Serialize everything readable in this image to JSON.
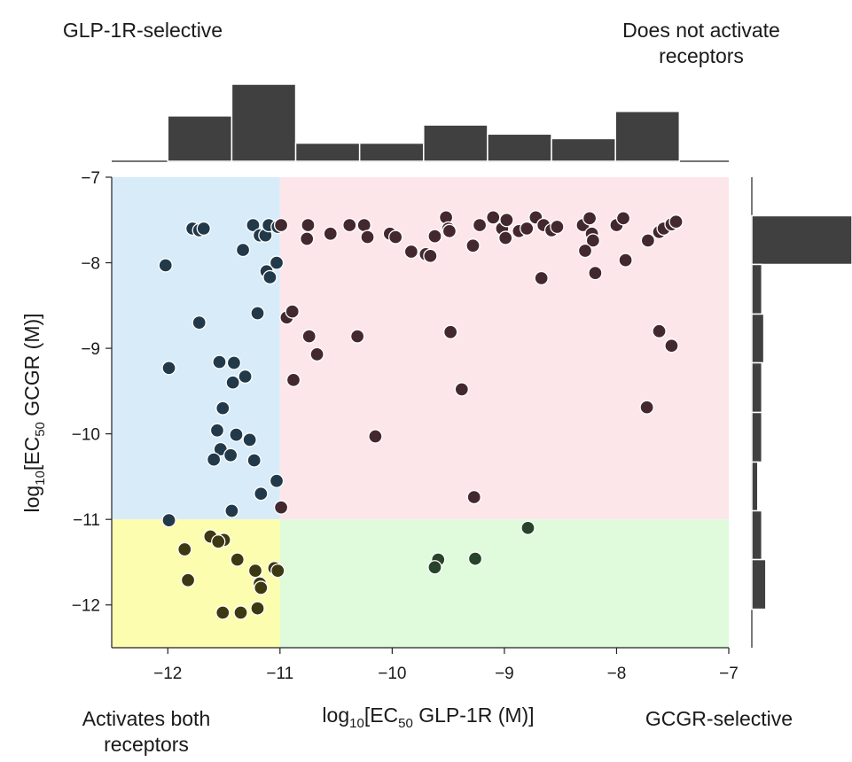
{
  "corner_labels": {
    "top_left": "GLP-1R-selective",
    "top_right": "Does not activate receptors",
    "bottom_left": "Activates both receptors",
    "bottom_right": "GCGR-selective"
  },
  "chart_data": {
    "type": "scatter",
    "xlabel": {
      "prefix": "log",
      "sub": "10",
      "mid": "[EC",
      "sub2": "50",
      "suffix": " GLP-1R (M)]"
    },
    "ylabel": {
      "prefix": "log",
      "sub": "10",
      "mid": "[EC",
      "sub2": "50",
      "suffix": " GCGR (M)]"
    },
    "xlim": [
      -12.5,
      -7
    ],
    "ylim": [
      -12.5,
      -7
    ],
    "x_ticks": [
      -12,
      -11,
      -10,
      -9,
      -8,
      -7
    ],
    "y_ticks": [
      -7,
      -8,
      -9,
      -10,
      -11,
      -12
    ],
    "tick_labels_x": [
      "−12",
      "−11",
      "−10",
      "−9",
      "−8",
      "−7"
    ],
    "tick_labels_y": [
      "−7",
      "−8",
      "−9",
      "−10",
      "−11",
      "−12"
    ],
    "threshold": {
      "x": -11,
      "y": -11
    },
    "regions": [
      {
        "name": "GLP-1R-selective",
        "x": [
          -12.5,
          -11
        ],
        "y": [
          -11,
          -7
        ],
        "color": "#d7ecf8"
      },
      {
        "name": "Does not activate receptors",
        "x": [
          -11,
          -7
        ],
        "y": [
          -11,
          -7
        ],
        "color": "#fde6ea"
      },
      {
        "name": "Activates both receptors",
        "x": [
          -12.5,
          -11
        ],
        "y": [
          -12.5,
          -11
        ],
        "color": "#fdfdb0"
      },
      {
        "name": "GCGR-selective",
        "x": [
          -11,
          -7
        ],
        "y": [
          -12.5,
          -11
        ],
        "color": "#dffbdc"
      }
    ],
    "point_colors": {
      "GLP-1R-selective": "#22394a",
      "Does not activate receptors": "#43292f",
      "Activates both receptors": "#3c3812",
      "GCGR-selective": "#27432a"
    },
    "series": [
      {
        "name": "GLP-1R-selective",
        "points": [
          [
            -11.78,
            -7.6
          ],
          [
            -11.72,
            -7.62
          ],
          [
            -11.68,
            -7.6
          ],
          [
            -11.24,
            -7.56
          ],
          [
            -11.18,
            -7.68
          ],
          [
            -11.13,
            -7.68
          ],
          [
            -11.1,
            -7.56
          ],
          [
            -11.02,
            -7.58
          ],
          [
            -11.33,
            -7.85
          ],
          [
            -12.02,
            -8.03
          ],
          [
            -11.03,
            -8.0
          ],
          [
            -11.12,
            -8.1
          ],
          [
            -11.09,
            -8.17
          ],
          [
            -11.2,
            -8.59
          ],
          [
            -11.72,
            -8.7
          ],
          [
            -11.54,
            -9.16
          ],
          [
            -11.41,
            -9.17
          ],
          [
            -11.99,
            -9.23
          ],
          [
            -11.31,
            -9.33
          ],
          [
            -11.42,
            -9.4
          ],
          [
            -11.51,
            -9.7
          ],
          [
            -11.56,
            -9.96
          ],
          [
            -11.39,
            -10.01
          ],
          [
            -11.27,
            -10.07
          ],
          [
            -11.53,
            -10.18
          ],
          [
            -11.44,
            -10.25
          ],
          [
            -11.59,
            -10.3
          ],
          [
            -11.23,
            -10.31
          ],
          [
            -11.03,
            -10.55
          ],
          [
            -11.17,
            -10.7
          ],
          [
            -11.43,
            -10.9
          ],
          [
            -11.99,
            -11.01
          ]
        ]
      },
      {
        "name": "Does not activate receptors",
        "points": [
          [
            -10.99,
            -7.56
          ],
          [
            -10.75,
            -7.56
          ],
          [
            -10.76,
            -7.72
          ],
          [
            -10.55,
            -7.66
          ],
          [
            -10.38,
            -7.56
          ],
          [
            -10.25,
            -7.56
          ],
          [
            -10.22,
            -7.7
          ],
          [
            -10.02,
            -7.66
          ],
          [
            -9.97,
            -7.7
          ],
          [
            -9.83,
            -7.87
          ],
          [
            -9.7,
            -7.9
          ],
          [
            -9.66,
            -7.92
          ],
          [
            -9.62,
            -7.69
          ],
          [
            -9.52,
            -7.47
          ],
          [
            -9.5,
            -7.6
          ],
          [
            -9.49,
            -7.63
          ],
          [
            -9.28,
            -7.8
          ],
          [
            -9.22,
            -7.56
          ],
          [
            -9.1,
            -7.47
          ],
          [
            -9.02,
            -7.6
          ],
          [
            -8.99,
            -7.71
          ],
          [
            -8.98,
            -7.5
          ],
          [
            -8.87,
            -7.63
          ],
          [
            -8.8,
            -7.6
          ],
          [
            -8.72,
            -7.47
          ],
          [
            -8.65,
            -7.56
          ],
          [
            -8.58,
            -7.62
          ],
          [
            -8.53,
            -7.58
          ],
          [
            -8.3,
            -7.56
          ],
          [
            -8.24,
            -7.48
          ],
          [
            -8.22,
            -7.66
          ],
          [
            -8.21,
            -7.74
          ],
          [
            -8.28,
            -7.86
          ],
          [
            -8.19,
            -8.12
          ],
          [
            -8.0,
            -7.56
          ],
          [
            -7.94,
            -7.48
          ],
          [
            -7.92,
            -7.97
          ],
          [
            -7.72,
            -7.74
          ],
          [
            -7.62,
            -7.64
          ],
          [
            -7.58,
            -7.6
          ],
          [
            -7.51,
            -7.55
          ],
          [
            -7.47,
            -7.52
          ],
          [
            -8.67,
            -8.18
          ],
          [
            -10.94,
            -8.64
          ],
          [
            -10.89,
            -8.57
          ],
          [
            -10.74,
            -8.86
          ],
          [
            -10.67,
            -9.07
          ],
          [
            -10.31,
            -8.86
          ],
          [
            -9.48,
            -8.81
          ],
          [
            -10.88,
            -9.37
          ],
          [
            -9.38,
            -9.48
          ],
          [
            -7.62,
            -8.8
          ],
          [
            -7.51,
            -8.97
          ],
          [
            -7.73,
            -9.69
          ],
          [
            -10.15,
            -10.03
          ],
          [
            -10.99,
            -10.86
          ],
          [
            -9.27,
            -10.74
          ]
        ]
      },
      {
        "name": "Activates both receptors",
        "points": [
          [
            -11.62,
            -11.2
          ],
          [
            -11.5,
            -11.24
          ],
          [
            -11.55,
            -11.26
          ],
          [
            -11.85,
            -11.35
          ],
          [
            -11.38,
            -11.47
          ],
          [
            -11.05,
            -11.57
          ],
          [
            -11.02,
            -11.6
          ],
          [
            -11.22,
            -11.6
          ],
          [
            -11.18,
            -11.75
          ],
          [
            -11.17,
            -11.8
          ],
          [
            -11.82,
            -11.71
          ],
          [
            -11.51,
            -12.09
          ],
          [
            -11.35,
            -12.09
          ],
          [
            -11.2,
            -12.04
          ]
        ]
      },
      {
        "name": "GCGR-selective",
        "points": [
          [
            -9.59,
            -11.47
          ],
          [
            -9.62,
            -11.56
          ],
          [
            -9.26,
            -11.46
          ],
          [
            -8.79,
            -11.1
          ]
        ]
      }
    ],
    "top_histogram": {
      "bins": [
        [
          -12.0,
          -11.43
        ],
        [
          -11.43,
          -10.86
        ],
        [
          -10.86,
          -10.29
        ],
        [
          -10.29,
          -9.72
        ],
        [
          -9.72,
          -9.15
        ],
        [
          -9.15,
          -8.58
        ],
        [
          -8.58,
          -8.01
        ],
        [
          -8.01,
          -7.44
        ]
      ],
      "counts": [
        10,
        17,
        4,
        4,
        8,
        6,
        5,
        11
      ]
    },
    "right_histogram": {
      "bins": [
        [
          -7.45,
          -8.02
        ],
        [
          -8.02,
          -8.6
        ],
        [
          -8.6,
          -9.17
        ],
        [
          -9.17,
          -9.75
        ],
        [
          -9.75,
          -10.33
        ],
        [
          -10.33,
          -10.9
        ],
        [
          -10.9,
          -11.47
        ],
        [
          -11.47,
          -12.05
        ]
      ],
      "counts": [
        50,
        5,
        6,
        5,
        5,
        3,
        5,
        7
      ]
    }
  }
}
